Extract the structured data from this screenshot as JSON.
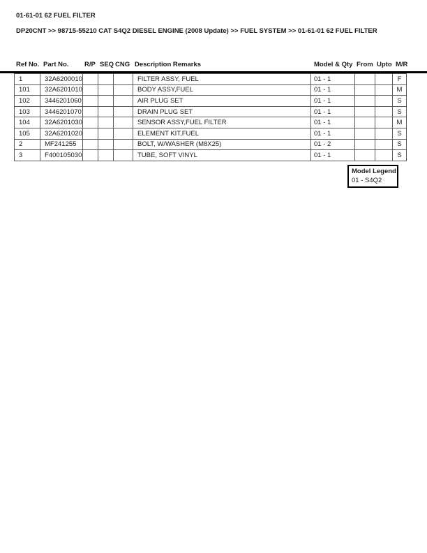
{
  "page": {
    "title": "01-61-01 62 FUEL FILTER",
    "breadcrumb": "DP20CNT >> 98715-55210 CAT S4Q2 DIESEL ENGINE (2008 Update) >> FUEL SYSTEM >> 01-61-01 62 FUEL FILTER"
  },
  "table": {
    "columns": [
      "Ref No.",
      "Part No.",
      "R/P",
      "SEQ",
      "CNG",
      "Description Remarks",
      "Model & Qty",
      "From",
      "Upto",
      "M/R"
    ],
    "rows": [
      {
        "ref": "1",
        "part": "32A6200010",
        "rp": "",
        "seq": "",
        "cng": "",
        "desc": "FILTER ASSY, FUEL",
        "model_qty": "01 - 1",
        "from": "",
        "upto": "",
        "mr": "F"
      },
      {
        "ref": "101",
        "part": "32A6201010",
        "rp": "",
        "seq": "",
        "cng": "",
        "desc": "BODY ASSY,FUEL",
        "model_qty": "01 - 1",
        "from": "",
        "upto": "",
        "mr": "M"
      },
      {
        "ref": "102",
        "part": "3446201060",
        "rp": "",
        "seq": "",
        "cng": "",
        "desc": "AIR PLUG SET",
        "model_qty": "01 - 1",
        "from": "",
        "upto": "",
        "mr": "S"
      },
      {
        "ref": "103",
        "part": "3446201070",
        "rp": "",
        "seq": "",
        "cng": "",
        "desc": "DRAIN PLUG SET",
        "model_qty": "01 - 1",
        "from": "",
        "upto": "",
        "mr": "S"
      },
      {
        "ref": "104",
        "part": "32A6201030",
        "rp": "",
        "seq": "",
        "cng": "",
        "desc": "SENSOR ASSY,FUEL FILTER",
        "model_qty": "01 - 1",
        "from": "",
        "upto": "",
        "mr": "M"
      },
      {
        "ref": "105",
        "part": "32A6201020",
        "rp": "",
        "seq": "",
        "cng": "",
        "desc": "ELEMENT KIT,FUEL",
        "model_qty": "01 - 1",
        "from": "",
        "upto": "",
        "mr": "S"
      },
      {
        "ref": "2",
        "part": "MF241255",
        "rp": "",
        "seq": "",
        "cng": "",
        "desc": "BOLT, W/WASHER (M8X25)",
        "model_qty": "01 - 2",
        "from": "",
        "upto": "",
        "mr": "S"
      },
      {
        "ref": "3",
        "part": "F400105030",
        "rp": "",
        "seq": "",
        "cng": "",
        "desc": "TUBE, SOFT VINYL",
        "model_qty": "01 - 1",
        "from": "",
        "upto": "",
        "mr": "S"
      }
    ]
  },
  "legend": {
    "title": "Model Legend",
    "entries": [
      "01 - S4Q2"
    ]
  },
  "colors": {
    "text": "#1a1a1a",
    "cell_border": "#595959",
    "header_rule": "#000000",
    "background": "#ffffff"
  }
}
